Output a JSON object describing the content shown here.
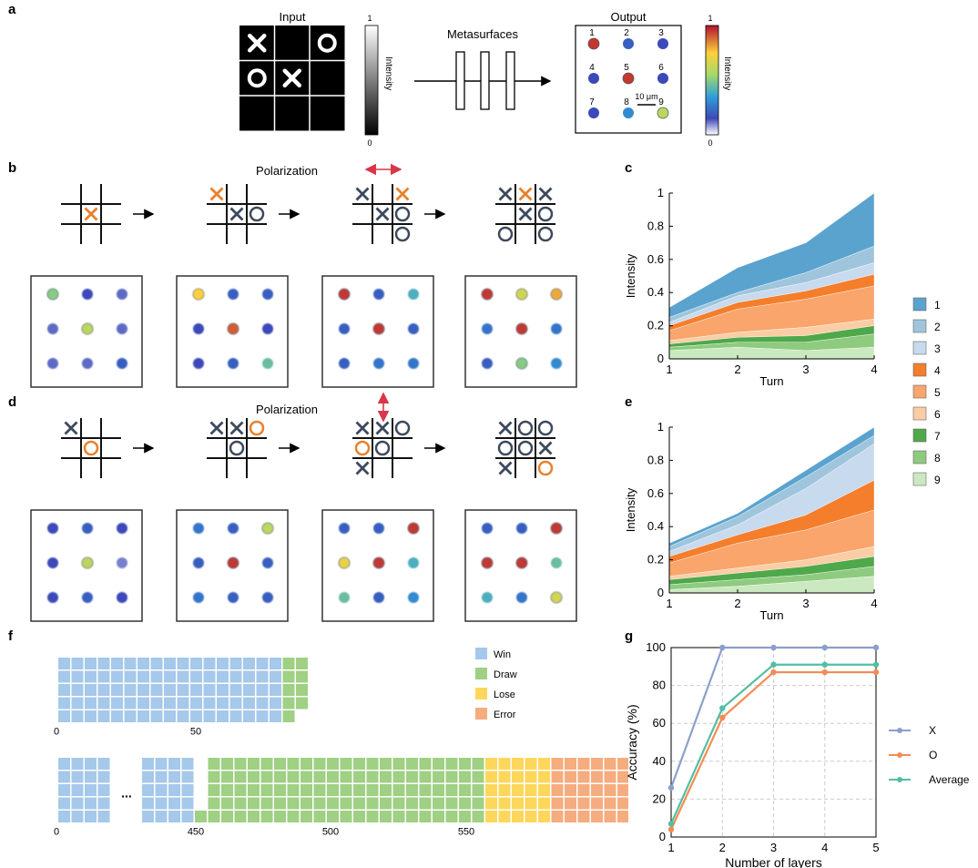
{
  "panel_labels": {
    "a": "a",
    "b": "b",
    "c": "c",
    "d": "d",
    "e": "e",
    "f": "f",
    "g": "g"
  },
  "panel_a": {
    "input_label": "Input",
    "output_label": "Output",
    "metasurfaces_label": "Metasurfaces",
    "intensity_label": "Intensity",
    "colorbar_max": "1",
    "colorbar_min": "0",
    "scale_label": "10 μm",
    "input_board": [
      "X",
      "",
      "O",
      "O",
      "X",
      "",
      "",
      "",
      ""
    ],
    "output_numbers": [
      "1",
      "2",
      "3",
      "4",
      "5",
      "6",
      "7",
      "8",
      "9"
    ],
    "output_levels": [
      0.95,
      0.2,
      0.15,
      0.15,
      0.95,
      0.15,
      0.15,
      0.3,
      0.6
    ]
  },
  "panel_b": {
    "polarization_label": "Polarization",
    "boards": [
      [
        "",
        "",
        "",
        "",
        "X*",
        "",
        "",
        "",
        ""
      ],
      [
        "X*",
        "",
        "",
        "",
        "X",
        "O",
        "",
        "",
        ""
      ],
      [
        "X",
        "",
        "X*",
        "",
        "X",
        "O",
        "",
        "",
        "O"
      ],
      [
        "X",
        "X*",
        "X",
        "",
        "X",
        "O",
        "O",
        "",
        "O"
      ]
    ],
    "spots": [
      [
        0.5,
        0.15,
        0.12,
        0.12,
        0.6,
        0.12,
        0.12,
        0.12,
        0.2
      ],
      [
        0.75,
        0.2,
        0.2,
        0.15,
        0.9,
        0.15,
        0.15,
        0.2,
        0.45
      ],
      [
        0.95,
        0.2,
        0.4,
        0.2,
        0.95,
        0.2,
        0.2,
        0.25,
        0.25
      ],
      [
        0.95,
        0.65,
        0.8,
        0.25,
        0.95,
        0.25,
        0.2,
        0.5,
        0.3
      ]
    ]
  },
  "panel_d": {
    "polarization_label": "Polarization",
    "boards": [
      [
        "X",
        "",
        "",
        "",
        "O*",
        "",
        "",
        "",
        ""
      ],
      [
        "X",
        "X",
        "O*",
        "",
        "O",
        "",
        "",
        "",
        ""
      ],
      [
        "X",
        "X",
        "O",
        "O*",
        "O",
        "",
        "X",
        "",
        ""
      ],
      [
        "X",
        "O",
        "O",
        "O",
        "O",
        "X",
        "X",
        "",
        "O*"
      ]
    ],
    "spots": [
      [
        0.15,
        0.2,
        0.15,
        0.15,
        0.6,
        0.1,
        0.15,
        0.2,
        0.15
      ],
      [
        0.25,
        0.2,
        0.6,
        0.2,
        0.95,
        0.2,
        0.25,
        0.2,
        0.2
      ],
      [
        0.2,
        0.2,
        0.95,
        0.7,
        0.95,
        0.4,
        0.45,
        0.2,
        0.3
      ],
      [
        0.2,
        0.2,
        0.95,
        0.95,
        0.95,
        0.45,
        0.4,
        0.25,
        0.65
      ]
    ]
  },
  "area_legend": {
    "items": [
      "1",
      "2",
      "3",
      "4",
      "5",
      "6",
      "7",
      "8",
      "9"
    ],
    "colors": [
      "#5ba3cf",
      "#9ec5dc",
      "#c8daee",
      "#f47e2b",
      "#f9a56c",
      "#fbcda5",
      "#4fa84a",
      "#8ecb7f",
      "#cbe9c0"
    ]
  },
  "chart_data": [
    {
      "type": "area",
      "panel": "c",
      "x": [
        1,
        2,
        3,
        4
      ],
      "xlabel": "Turn",
      "ylabel": "Intensity",
      "xlim": [
        1,
        4
      ],
      "ylim": [
        0,
        1
      ],
      "yticks": [
        "0",
        "0.2",
        "0.4",
        "0.6",
        "0.8",
        "1"
      ],
      "xticks": [
        "1",
        "2",
        "3",
        "4"
      ],
      "stacked_order_bottom_to_top": [
        "9",
        "8",
        "7",
        "6",
        "5",
        "4",
        "3",
        "2",
        "1"
      ],
      "cumulative_boundaries": [
        [
          0.05,
          0.07,
          0.05,
          0.07
        ],
        [
          0.07,
          0.1,
          0.1,
          0.15
        ],
        [
          0.09,
          0.13,
          0.14,
          0.2
        ],
        [
          0.11,
          0.16,
          0.19,
          0.24
        ],
        [
          0.17,
          0.3,
          0.36,
          0.44
        ],
        [
          0.2,
          0.34,
          0.41,
          0.51
        ],
        [
          0.22,
          0.38,
          0.46,
          0.58
        ],
        [
          0.25,
          0.4,
          0.52,
          0.68
        ],
        [
          0.31,
          0.55,
          0.7,
          1.0
        ]
      ]
    },
    {
      "type": "area",
      "panel": "e",
      "x": [
        1,
        2,
        3,
        4
      ],
      "xlabel": "Turn",
      "ylabel": "Intensity",
      "xlim": [
        1,
        4
      ],
      "ylim": [
        0,
        1
      ],
      "yticks": [
        "0",
        "0.2",
        "0.4",
        "0.6",
        "0.8",
        "1"
      ],
      "xticks": [
        "1",
        "2",
        "3",
        "4"
      ],
      "stacked_order_bottom_to_top": [
        "9",
        "8",
        "7",
        "6",
        "5",
        "4",
        "3",
        "2",
        "1"
      ],
      "cumulative_boundaries": [
        [
          0.02,
          0.04,
          0.07,
          0.1
        ],
        [
          0.05,
          0.08,
          0.11,
          0.16
        ],
        [
          0.08,
          0.12,
          0.16,
          0.22
        ],
        [
          0.1,
          0.15,
          0.2,
          0.28
        ],
        [
          0.18,
          0.3,
          0.38,
          0.5
        ],
        [
          0.22,
          0.35,
          0.47,
          0.68
        ],
        [
          0.25,
          0.41,
          0.63,
          0.9
        ],
        [
          0.28,
          0.46,
          0.7,
          0.95
        ],
        [
          0.3,
          0.48,
          0.74,
          1.0
        ]
      ]
    },
    {
      "type": "line",
      "panel": "g",
      "x": [
        1,
        2,
        3,
        4,
        5
      ],
      "xlabel": "Number of layers",
      "ylabel": "Accuracy (%)",
      "xlim": [
        1,
        5
      ],
      "ylim": [
        0,
        100
      ],
      "yticks": [
        "0",
        "20",
        "40",
        "60",
        "80",
        "100"
      ],
      "xticks": [
        "1",
        "2",
        "3",
        "4",
        "5"
      ],
      "series": [
        {
          "name": "X",
          "values": [
            26,
            100,
            100,
            100,
            100
          ],
          "color": "#8c9fcb"
        },
        {
          "name": "O",
          "values": [
            4,
            63,
            87,
            87,
            87
          ],
          "color": "#f48b54"
        },
        {
          "name": "Average",
          "values": [
            7,
            68,
            91,
            91,
            91
          ],
          "color": "#52bea2"
        }
      ]
    },
    {
      "type": "waffle",
      "panel": "f",
      "top": {
        "win_columns": [
          5,
          5,
          5,
          5,
          5,
          5,
          5,
          5,
          5,
          5,
          5,
          5,
          5,
          5,
          5,
          5,
          5
        ],
        "draw_columns": [
          5,
          4
        ],
        "tick_labels": [
          "0",
          "50"
        ]
      },
      "bottom": {
        "win_left_columns": 4,
        "ellipsis": "...",
        "win_right_columns": 4,
        "draw_columns": [
          1,
          5,
          5,
          5,
          5,
          5,
          5,
          5,
          5,
          5,
          5,
          5,
          5,
          5,
          5,
          5,
          5,
          5,
          5,
          5,
          5,
          5
        ],
        "lose_columns": [
          5,
          5,
          5,
          5,
          5
        ],
        "error_columns": [
          5,
          5,
          5,
          5,
          5,
          5,
          5,
          3,
          2
        ],
        "tick_labels": [
          "0",
          "450",
          "500",
          "550"
        ]
      },
      "legend": [
        "Win",
        "Draw",
        "Lose",
        "Error"
      ],
      "colors": {
        "Win": "#a6c8ea",
        "Draw": "#9fd083",
        "Lose": "#fdd75b",
        "Error": "#f5ac7f"
      }
    }
  ]
}
